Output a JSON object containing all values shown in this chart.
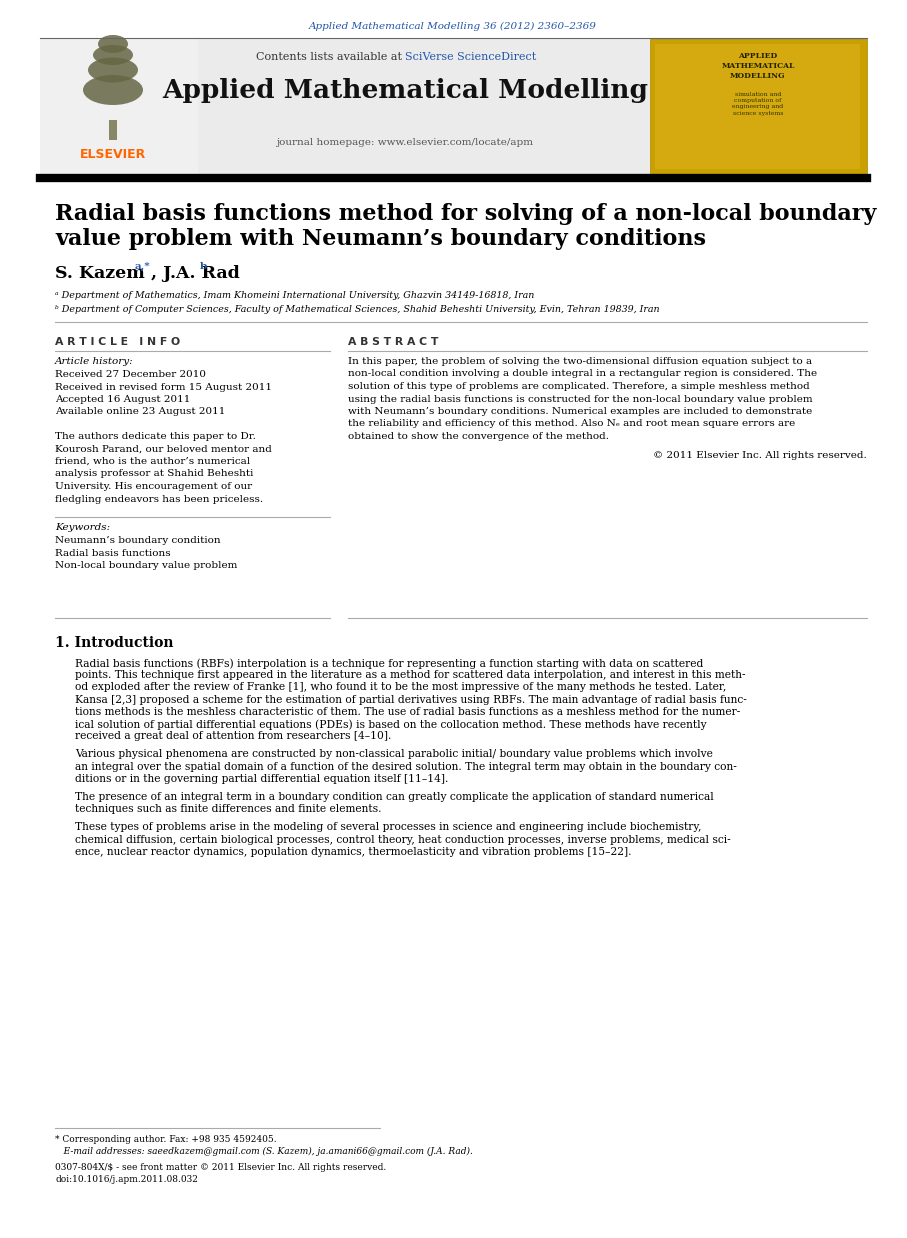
{
  "page_bg": "#ffffff",
  "header_journal_text": "Applied Mathematical Modelling 36 (2012) 2360–2369",
  "header_journal_color": "#2255aa",
  "journal_name": "Applied Mathematical Modelling",
  "contents_text": "Contents lists available at ",
  "sciverse_text": "SciVerse ScienceDirect",
  "sciverse_color": "#2255aa",
  "journal_homepage": "journal homepage: www.elsevier.com/locate/apm",
  "header_bg": "#e8e8e8",
  "title_line1": "Radial basis functions method for solving of a non-local boundary",
  "title_line2": "value problem with Neumann’s boundary conditions",
  "author1": "S. Kazem",
  "author1_super": "a,*",
  "author2": ", J.A. Rad",
  "author2_super": "b",
  "affil1": "ᵃ Department of Mathematics, Imam Khomeini International University, Ghazvin 34149-16818, Iran",
  "affil2": "ᵇ Department of Computer Sciences, Faculty of Mathematical Sciences, Shahid Beheshti University, Evin, Tehran 19839, Iran",
  "article_info_header": "A R T I C L E   I N F O",
  "abstract_header": "A B S T R A C T",
  "article_history_label": "Article history:",
  "received1": "Received 27 December 2010",
  "received2": "Received in revised form 15 August 2011",
  "accepted": "Accepted 16 August 2011",
  "available": "Available online 23 August 2011",
  "dedication_lines": [
    "The authors dedicate this paper to Dr.",
    "Kourosh Parand, our beloved mentor and",
    "friend, who is the author’s numerical",
    "analysis professor at Shahid Beheshti",
    "University. His encouragement of our",
    "fledgling endeavors has been priceless."
  ],
  "keywords_label": "Keywords:",
  "keyword1": "Neumann’s boundary condition",
  "keyword2": "Radial basis functions",
  "keyword3": "Non-local boundary value problem",
  "abstract_lines": [
    "In this paper, the problem of solving the two-dimensional diffusion equation subject to a",
    "non-local condition involving a double integral in a rectangular region is considered. The",
    "solution of this type of problems are complicated. Therefore, a simple meshless method",
    "using the radial basis functions is constructed for the non-local boundary value problem",
    "with Neumann’s boundary conditions. Numerical examples are included to demonstrate",
    "the reliability and efficiency of this method. Also Nₑ and root mean square errors are",
    "obtained to show the convergence of the method."
  ],
  "copyright": "© 2011 Elsevier Inc. All rights reserved.",
  "section1_title": "1. Introduction",
  "intro_para1_lines": [
    "Radial basis functions (RBFs) interpolation is a technique for representing a function starting with data on scattered",
    "points. This technique first appeared in the literature as a method for scattered data interpolation, and interest in this meth-",
    "od exploded after the review of Franke [1], who found it to be the most impressive of the many methods he tested. Later,",
    "Kansa [2,3] proposed a scheme for the estimation of partial derivatives using RBFs. The main advantage of radial basis func-",
    "tions methods is the meshless characteristic of them. The use of radial basis functions as a meshless method for the numer-",
    "ical solution of partial differential equations (PDEs) is based on the collocation method. These methods have recently",
    "received a great deal of attention from researchers [4–10]."
  ],
  "intro_para2_lines": [
    "Various physical phenomena are constructed by non-classical parabolic initial/ boundary value problems which involve",
    "an integral over the spatial domain of a function of the desired solution. The integral term may obtain in the boundary con-",
    "ditions or in the governing partial differential equation itself [11–14]."
  ],
  "intro_para3_lines": [
    "The presence of an integral term in a boundary condition can greatly complicate the application of standard numerical",
    "techniques such as finite differences and finite elements."
  ],
  "intro_para4_lines": [
    "These types of problems arise in the modeling of several processes in science and engineering include biochemistry,",
    "chemical diffusion, certain biological processes, control theory, heat conduction processes, inverse problems, medical sci-",
    "ence, nuclear reactor dynamics, population dynamics, thermoelasticity and vibration problems [15–22]."
  ],
  "footnote_star": "* Corresponding author. Fax: +98 935 4592405.",
  "footnote_email": "E-mail addresses: saeedkazem@gmail.com (S. Kazem), ja.amani66@gmail.com (J.A. Rad).",
  "footnote_copy": "0307-804X/$ - see front matter © 2011 Elsevier Inc. All rights reserved.",
  "footnote_doi": "doi:10.1016/j.apm.2011.08.032",
  "orange": "#ff6600",
  "link_color": "#2255aa",
  "dark": "#111111",
  "mid": "#555555",
  "light_gray": "#ebebeb",
  "separator": "#aaaaaa"
}
